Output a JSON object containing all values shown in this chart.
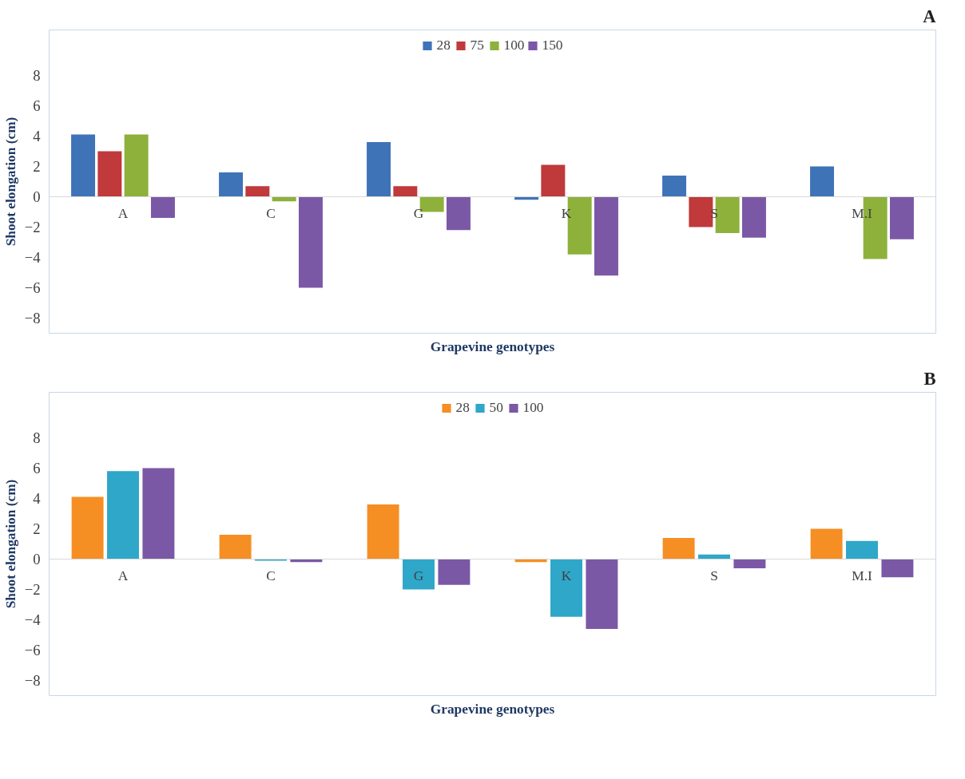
{
  "chart_data": [
    {
      "type": "bar",
      "title": "A",
      "xlabel": "Grapevine genotypes",
      "ylabel": "Shoot elongation (cm)",
      "categories": [
        "A",
        "C",
        "G",
        "K",
        "S",
        "M.I"
      ],
      "ylim": [
        -9,
        11
      ],
      "yticks": [
        -8,
        -6,
        -4,
        -2,
        0,
        2,
        4,
        6,
        8
      ],
      "grid": false,
      "legend": "top",
      "series": [
        {
          "name": "28",
          "color": "#3f73b8",
          "values": [
            4.1,
            1.6,
            3.6,
            -0.2,
            1.4,
            2.0
          ]
        },
        {
          "name": "75",
          "color": "#c0393b",
          "values": [
            3.0,
            0.7,
            0.7,
            2.1,
            -2.0,
            null
          ]
        },
        {
          "name": "100",
          "color": "#8db13a",
          "values": [
            4.1,
            -0.3,
            -1.0,
            -3.8,
            -2.4,
            -4.1
          ]
        },
        {
          "name": "150",
          "color": "#7b58a6",
          "values": [
            -1.4,
            -6.0,
            -2.2,
            -5.2,
            -2.7,
            -2.8
          ]
        }
      ]
    },
    {
      "type": "bar",
      "title": "B",
      "xlabel": "Grapevine genotypes",
      "ylabel": "Shoot elongation (cm)",
      "categories": [
        "A",
        "C",
        "G",
        "K",
        "S",
        "M.I"
      ],
      "ylim": [
        -9,
        11
      ],
      "yticks": [
        -8,
        -6,
        -4,
        -2,
        0,
        2,
        4,
        6,
        8
      ],
      "grid": false,
      "legend": "top",
      "series": [
        {
          "name": "28",
          "color": "#f58f24",
          "values": [
            4.1,
            1.6,
            3.6,
            -0.2,
            1.4,
            2.0
          ]
        },
        {
          "name": "50",
          "color": "#2ea7c9",
          "values": [
            5.8,
            -0.1,
            -2.0,
            -3.8,
            0.3,
            1.2
          ]
        },
        {
          "name": "100",
          "color": "#7b58a6",
          "values": [
            6.0,
            -0.2,
            -1.7,
            -4.6,
            -0.6,
            -1.2
          ]
        }
      ]
    }
  ]
}
